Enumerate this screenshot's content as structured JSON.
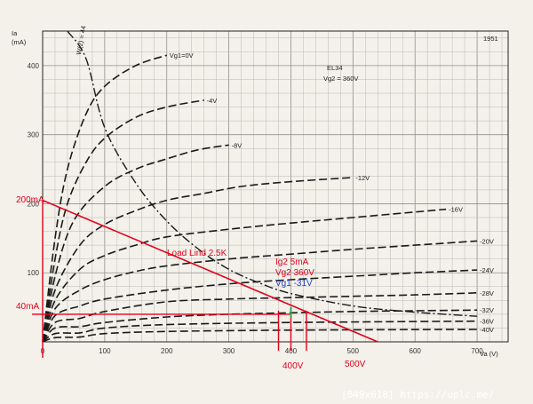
{
  "chart_data": {
    "type": "line",
    "title": "EL34",
    "subtitle": "Vg2 = 360V",
    "year": "1951",
    "xlabel": "Va (V)",
    "ylabel": "Ia (mA)",
    "xlim": [
      0,
      750
    ],
    "ylim": [
      0,
      450
    ],
    "x_ticks": [
      0,
      100,
      200,
      300,
      400,
      500,
      600,
      700
    ],
    "y_ticks": [
      100,
      200,
      300,
      400
    ],
    "grid": true,
    "pmax_label": "W(2) = 44",
    "series": [
      {
        "name": "Vg1=0V",
        "x": [
          0,
          20,
          40,
          70,
          100,
          150,
          200
        ],
        "y": [
          0,
          150,
          250,
          330,
          370,
          400,
          415
        ]
      },
      {
        "name": "-4V",
        "x": [
          0,
          20,
          40,
          70,
          100,
          150,
          200,
          260
        ],
        "y": [
          0,
          120,
          200,
          260,
          295,
          325,
          340,
          350
        ]
      },
      {
        "name": "-8V",
        "x": [
          0,
          20,
          50,
          100,
          150,
          200,
          250,
          300
        ],
        "y": [
          0,
          95,
          175,
          225,
          250,
          265,
          278,
          285
        ]
      },
      {
        "name": "-12V",
        "x": [
          0,
          20,
          60,
          100,
          150,
          200,
          260,
          320,
          400,
          500
        ],
        "y": [
          0,
          75,
          140,
          170,
          190,
          205,
          215,
          225,
          232,
          238
        ]
      },
      {
        "name": "-16V",
        "x": [
          0,
          20,
          60,
          100,
          150,
          200,
          300,
          400,
          500,
          600,
          650
        ],
        "y": [
          0,
          60,
          105,
          125,
          140,
          152,
          163,
          172,
          180,
          188,
          192
        ]
      },
      {
        "name": "-20V",
        "x": [
          0,
          20,
          60,
          100,
          150,
          200,
          300,
          400,
          500,
          600,
          700
        ],
        "y": [
          0,
          48,
          75,
          90,
          102,
          110,
          120,
          127,
          134,
          140,
          146
        ]
      },
      {
        "name": "-24V",
        "x": [
          0,
          20,
          60,
          100,
          200,
          300,
          400,
          500,
          600,
          700
        ],
        "y": [
          0,
          38,
          52,
          62,
          75,
          84,
          90,
          95,
          100,
          104
        ]
      },
      {
        "name": "-28V",
        "x": [
          0,
          20,
          60,
          100,
          200,
          300,
          400,
          500,
          600,
          700
        ],
        "y": [
          0,
          28,
          34,
          44,
          58,
          62,
          64,
          66,
          68,
          71
        ]
      },
      {
        "name": "-32V",
        "x": [
          0,
          20,
          60,
          100,
          200,
          300,
          400,
          500,
          600,
          700
        ],
        "y": [
          0,
          20,
          22,
          28,
          36,
          40,
          42,
          44,
          45,
          46
        ]
      },
      {
        "name": "-36V",
        "x": [
          0,
          20,
          60,
          100,
          200,
          400,
          700
        ],
        "y": [
          0,
          12,
          13,
          20,
          25,
          28,
          30
        ]
      },
      {
        "name": "-40V",
        "x": [
          0,
          20,
          60,
          100,
          200,
          400,
          700
        ],
        "y": [
          0,
          6,
          7,
          12,
          15,
          17,
          18
        ]
      }
    ],
    "pmax_curve": {
      "x": [
        40,
        70,
        100,
        150,
        200,
        250,
        300,
        350,
        400,
        500,
        600,
        700
      ],
      "y": [
        450,
        410,
        310,
        230,
        175,
        135,
        105,
        85,
        70,
        52,
        43,
        37
      ]
    },
    "load_line": {
      "x": [
        0,
        540
      ],
      "y": [
        205,
        0
      ]
    },
    "annotations": {
      "y_200": "200mA",
      "y_40": "40mA",
      "load_line": "Load Lind 2.5K",
      "ig2": "Ig2 5mA",
      "vg2": "Vg2 360V",
      "vg1": "Vg1 -31V",
      "x_400": "400V",
      "x_500": "500V",
      "operating_point": {
        "x": 400,
        "y": 40
      }
    }
  },
  "footer": "[849x618] https://uplc.me/"
}
